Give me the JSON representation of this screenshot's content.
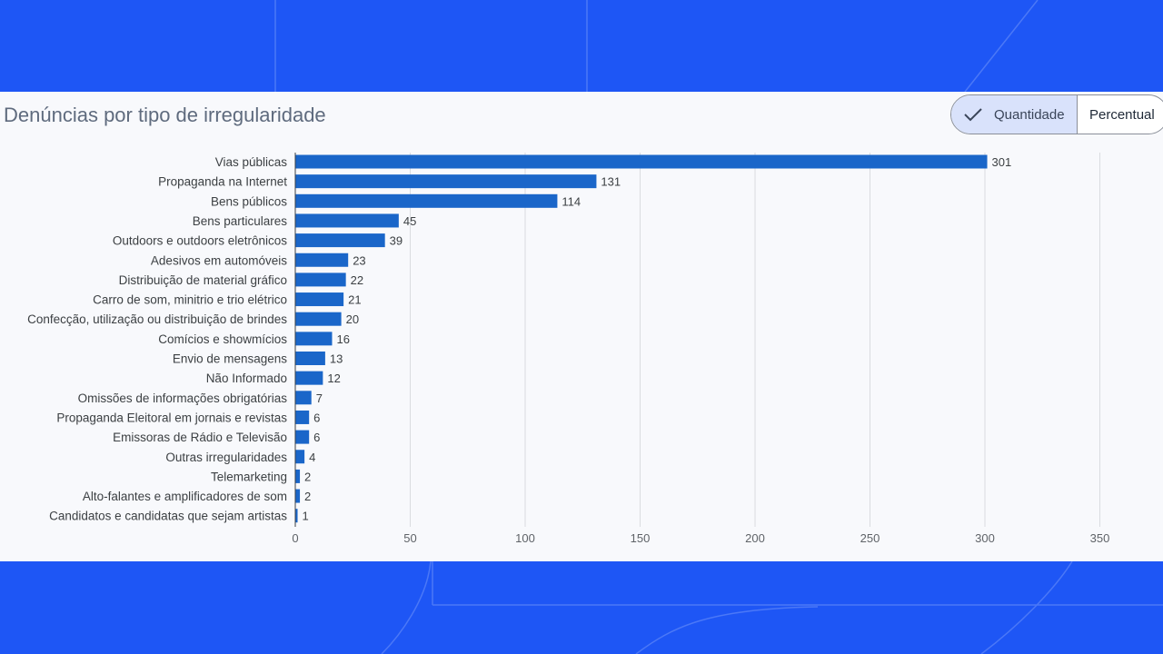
{
  "title": "Denúncias por tipo de irregularidade",
  "toggle": {
    "active": "Quantidade",
    "inactive": "Percentual"
  },
  "colors": {
    "background": "#1e56f5",
    "bar": "#1a66c9",
    "card": "#f8f9fc"
  },
  "chart_data": {
    "type": "bar",
    "orientation": "horizontal",
    "title": "Denúncias por tipo de irregularidade",
    "categories": [
      "Vias públicas",
      "Propaganda na Internet",
      "Bens públicos",
      "Bens particulares",
      "Outdoors e outdoors eletrônicos",
      "Adesivos em automóveis",
      "Distribuição de material gráfico",
      "Carro de som, minitrio e trio elétrico",
      "Confecção, utilização ou distribuição de brindes",
      "Comícios e showmícios",
      "Envio de mensagens",
      "Não Informado",
      "Omissões de informações obrigatórias",
      "Propaganda Eleitoral em jornais e revistas",
      "Emissoras de Rádio e Televisão",
      "Outras irregularidades",
      "Telemarketing",
      "Alto-falantes e amplificadores de som",
      "Candidatos e candidatas que sejam artistas"
    ],
    "values": [
      301,
      131,
      114,
      45,
      39,
      23,
      22,
      21,
      20,
      16,
      13,
      12,
      7,
      6,
      6,
      4,
      2,
      2,
      1
    ],
    "xlim": [
      0,
      350
    ],
    "xticks": [
      0,
      50,
      100,
      150,
      200,
      250,
      300,
      350
    ],
    "grid": true,
    "data_labels": true
  }
}
